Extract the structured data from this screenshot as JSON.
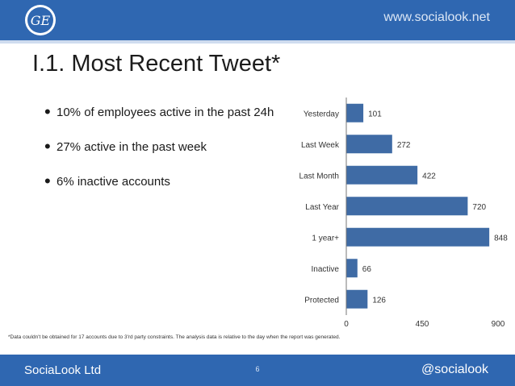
{
  "header": {
    "url": "www.socialook.net",
    "logo_text": "GE"
  },
  "title": "I.1. Most Recent Tweet*",
  "bullets": [
    "10% of employees active in the past 24h",
    "27% active in the past week",
    "6% inactive accounts"
  ],
  "colors": {
    "brand": "#2f67b1",
    "bar": "#3f6ba5",
    "divider": "#cfdcef"
  },
  "chart_data": {
    "type": "bar",
    "orientation": "horizontal",
    "categories": [
      "Yesterday",
      "Last Week",
      "Last Month",
      "Last Year",
      "1 year+",
      "Inactive",
      "Protected"
    ],
    "values": [
      101,
      272,
      422,
      720,
      848,
      66,
      126
    ],
    "xlim": [
      0,
      900
    ],
    "xticks": [
      0,
      450,
      900
    ],
    "grid": false,
    "title": "",
    "xlabel": "",
    "ylabel": ""
  },
  "footnote": "*Data couldn't be obtained for 17 accounts due to 3'rd party constraints. The analysis data is relative to the day when the report was generated.",
  "footer": {
    "company": "SociaLook Ltd",
    "page": "6",
    "handle": "@socialook"
  }
}
